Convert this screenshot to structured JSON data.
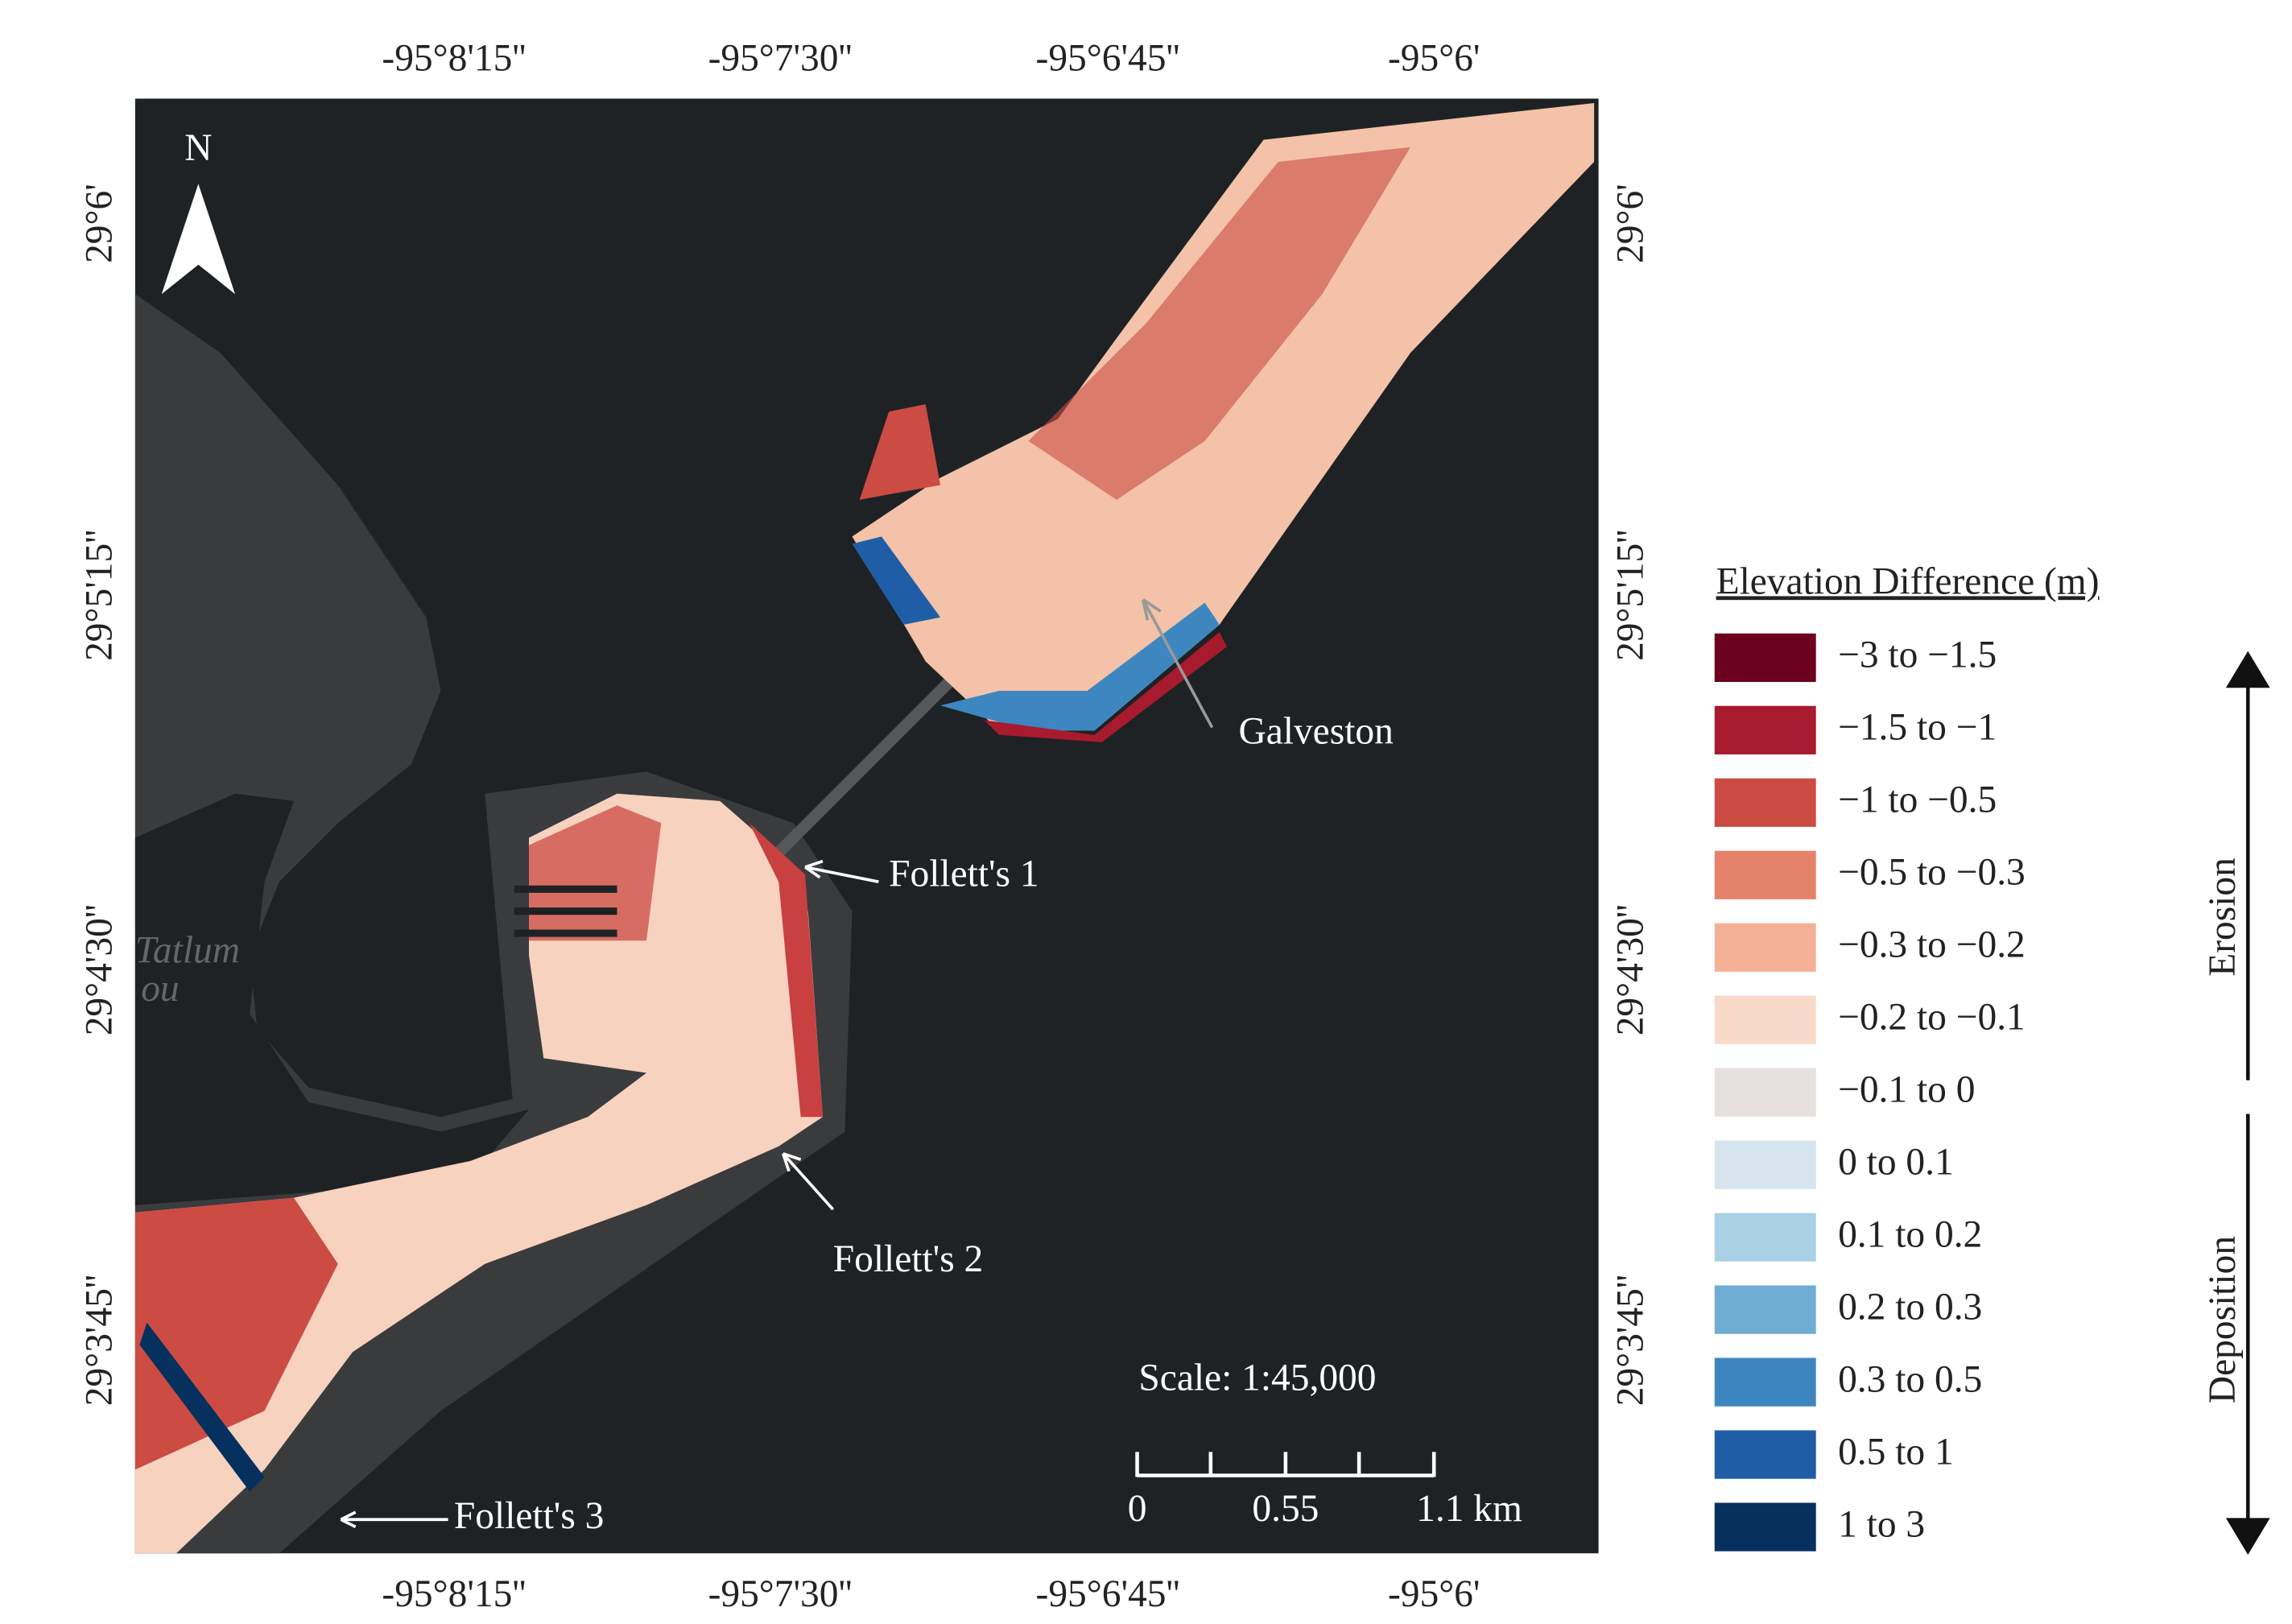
{
  "map": {
    "longitude_labels": [
      "-95°8'15''",
      "-95°7'30''",
      "-95°6'45''",
      "-95°6'"
    ],
    "latitude_labels": [
      "29°6'",
      "29°5'15''",
      "29°4'30''",
      "29°3'45''"
    ],
    "north_label": "N",
    "basemap_labels": [
      "Tatlum",
      "ou"
    ],
    "annotations": [
      "Galveston",
      "Follett's 1",
      "Follett's 2",
      "Follett's 3"
    ],
    "scale": {
      "title": "Scale: 1:45,000",
      "labels": [
        "0",
        "0.55",
        "1.1 km"
      ]
    }
  },
  "legend": {
    "title": "Elevation Difference (m)",
    "items": [
      {
        "label": "−3 to −1.5",
        "color": "#6d0220"
      },
      {
        "label": "−1.5 to −1",
        "color": "#a81a2d"
      },
      {
        "label": "−1 to −0.5",
        "color": "#cc4b43"
      },
      {
        "label": "−0.5 to −0.3",
        "color": "#e5836a"
      },
      {
        "label": "−0.3 to −0.2",
        "color": "#f4b195"
      },
      {
        "label": "−0.2 to −0.1",
        "color": "#f9dac9"
      },
      {
        "label": "−0.1 to 0",
        "color": "#e6e1de"
      },
      {
        "label": "0 to 0.1",
        "color": "#d6e5ee"
      },
      {
        "label": "0.1 to 0.2",
        "color": "#a9d0e5"
      },
      {
        "label": "0.2 to 0.3",
        "color": "#6fadd3"
      },
      {
        "label": "0.3 to 0.5",
        "color": "#3e86c0"
      },
      {
        "label": "0.5 to 1",
        "color": "#1f5ea6"
      },
      {
        "label": "1 to 3",
        "color": "#06305e"
      }
    ],
    "erosion_label": "Erosion",
    "deposition_label": "Deposition"
  }
}
